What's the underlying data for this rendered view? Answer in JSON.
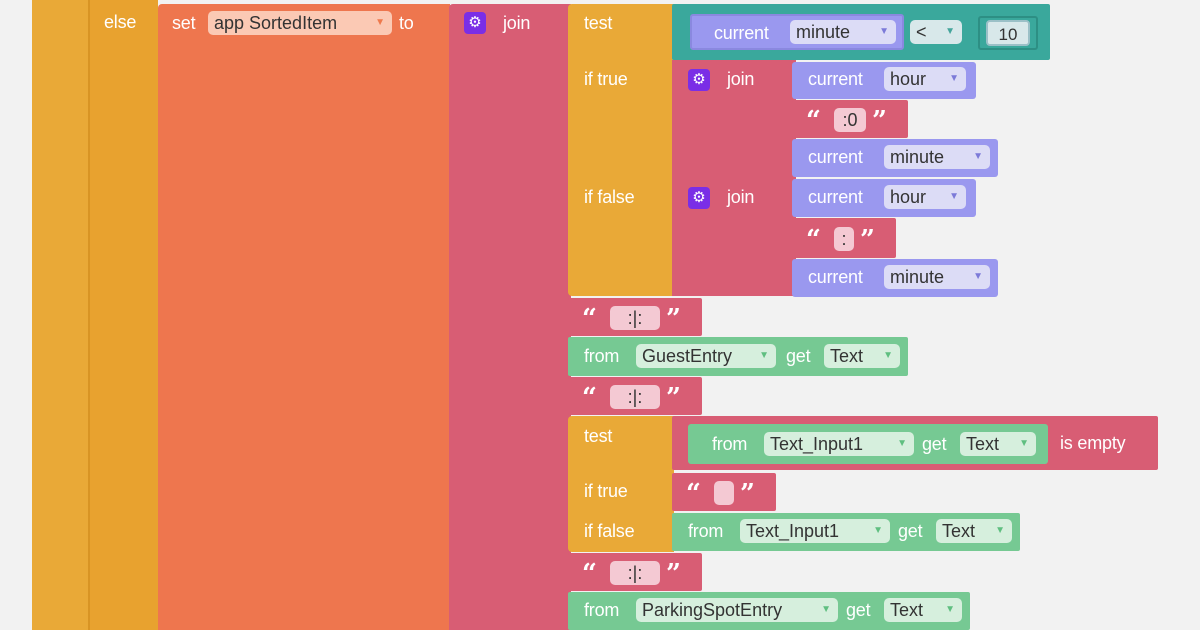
{
  "colors": {
    "control": "#e9a937",
    "variable_set": "#ee764e",
    "text": "#d85d74",
    "math": "#3aa89c",
    "component": "#76c993",
    "local_var": "#9a98ef",
    "gear": "#7a2ee6",
    "background": "#f2f2f2"
  },
  "blocks": {
    "else_label": "else",
    "set_block": {
      "set_label": "set",
      "variable": "app SortedItem",
      "to_label": "to"
    },
    "join_main_label": "join",
    "if1": {
      "test_label": "test",
      "compare": {
        "current_label": "current",
        "var": "minute",
        "operator": "<",
        "value": "10"
      },
      "if_true_label": "if true",
      "if_false_label": "if false",
      "join_true": {
        "label": "join",
        "current_hour_label": "current",
        "hour_var": "hour",
        "string": ":0",
        "current_minute_label": "current",
        "minute_var": "minute"
      },
      "join_false": {
        "label": "join",
        "current_hour_label": "current",
        "hour_var": "hour",
        "string": ":",
        "current_minute_label": "current",
        "minute_var": "minute"
      }
    },
    "sep1": " :|: ",
    "guest": {
      "from_label": "from",
      "component": "GuestEntry",
      "get_label": "get",
      "property": "Text"
    },
    "sep2": " :|: ",
    "if2": {
      "test_label": "test",
      "is_empty": {
        "from_label": "from",
        "component": "Text_Input1",
        "get_label": "get",
        "property": "Text",
        "is_empty_label": "is empty"
      },
      "if_true_label": "if true",
      "true_string": "",
      "if_false_label": "if false",
      "false_value": {
        "from_label": "from",
        "component": "Text_Input1",
        "get_label": "get",
        "property": "Text"
      }
    },
    "sep3": " :|: ",
    "parking": {
      "from_label": "from",
      "component": "ParkingSpotEntry",
      "get_label": "get",
      "property": "Text"
    }
  }
}
